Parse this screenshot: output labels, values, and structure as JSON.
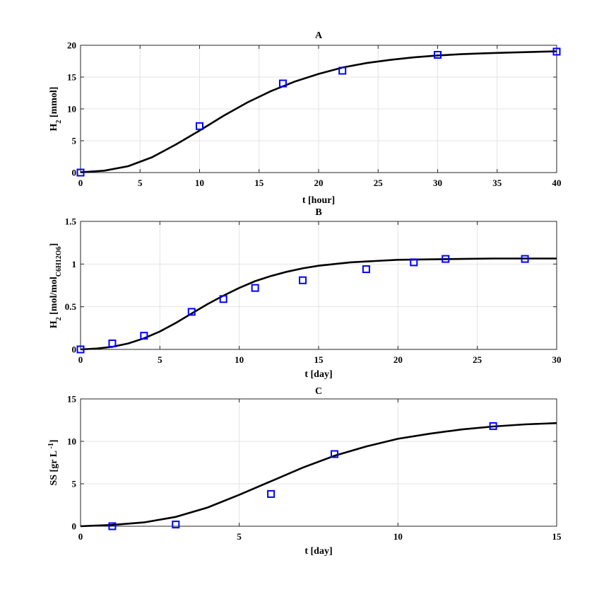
{
  "chart_data": [
    {
      "type": "scatter",
      "title": "A",
      "xlabel": "t [hour]",
      "ylabel": "H",
      "ylabel_sub": "2",
      "ylabel_rest": " [mmol]",
      "xlim": [
        0,
        40
      ],
      "ylim": [
        0,
        20
      ],
      "xticks": [
        0,
        5,
        10,
        15,
        20,
        25,
        30,
        35,
        40
      ],
      "yticks": [
        0,
        5,
        10,
        15,
        20
      ],
      "ytick_labels": [
        "0",
        "5",
        "10",
        "15",
        "20"
      ],
      "grid": true,
      "marker_color": "#0000ff",
      "line_color": "#000000",
      "series": [
        {
          "kind": "markers",
          "x": [
            0,
            10,
            17,
            22,
            30,
            40
          ],
          "y": [
            0,
            7.3,
            14,
            16,
            18.5,
            19
          ]
        },
        {
          "kind": "line",
          "x": [
            0,
            2,
            4,
            6,
            8,
            10,
            12,
            14,
            16,
            18,
            20,
            22,
            24,
            26,
            28,
            30,
            32,
            34,
            36,
            38,
            40
          ],
          "y": [
            0.05,
            0.3,
            1.0,
            2.4,
            4.4,
            6.6,
            8.9,
            11.0,
            12.8,
            14.3,
            15.5,
            16.5,
            17.2,
            17.7,
            18.1,
            18.4,
            18.6,
            18.75,
            18.85,
            18.95,
            19.05
          ]
        }
      ]
    },
    {
      "type": "scatter",
      "title": "B",
      "xlabel": "t [day]",
      "ylabel": "H",
      "ylabel_sub": "2",
      "ylabel_rest": " [mol/mol",
      "ylabel_sub2": "C6H12O6",
      "ylabel_end": "]",
      "xlim": [
        0,
        30
      ],
      "ylim": [
        0,
        1.5
      ],
      "xticks": [
        0,
        5,
        10,
        15,
        20,
        25,
        30
      ],
      "yticks": [
        0,
        0.5,
        1,
        1.5
      ],
      "ytick_labels": [
        "0",
        "0.5",
        "1",
        "1.5"
      ],
      "grid": true,
      "marker_color": "#0000ff",
      "line_color": "#000000",
      "series": [
        {
          "kind": "markers",
          "x": [
            0,
            2,
            4,
            7,
            9,
            11,
            14,
            18,
            21,
            23,
            28
          ],
          "y": [
            0,
            0.07,
            0.16,
            0.44,
            0.59,
            0.72,
            0.81,
            0.94,
            1.02,
            1.06,
            1.06
          ]
        },
        {
          "kind": "line",
          "x": [
            0,
            1,
            2,
            3,
            4,
            5,
            6,
            7,
            8,
            9,
            10,
            11,
            12,
            13,
            14,
            15,
            16,
            17,
            18,
            19,
            20,
            22,
            24,
            26,
            28,
            30
          ],
          "y": [
            0.0,
            0.01,
            0.03,
            0.07,
            0.13,
            0.21,
            0.31,
            0.42,
            0.53,
            0.63,
            0.72,
            0.8,
            0.86,
            0.91,
            0.95,
            0.98,
            1.0,
            1.02,
            1.03,
            1.04,
            1.05,
            1.055,
            1.06,
            1.065,
            1.065,
            1.065
          ]
        }
      ]
    },
    {
      "type": "scatter",
      "title": "C",
      "xlabel": "t [day]",
      "ylabel": "SS [gr L",
      "ylabel_sup": " -1",
      "ylabel_end": "]",
      "xlim": [
        0,
        15
      ],
      "ylim": [
        0,
        15
      ],
      "xticks": [
        0,
        5,
        10,
        15
      ],
      "yticks": [
        0,
        5,
        10,
        15
      ],
      "ytick_labels": [
        "0",
        "5",
        "10",
        "15"
      ],
      "grid": true,
      "marker_color": "#0000ff",
      "line_color": "#000000",
      "series": [
        {
          "kind": "markers",
          "x": [
            1,
            3,
            6,
            8,
            13
          ],
          "y": [
            0,
            0.2,
            3.8,
            8.5,
            11.8
          ]
        },
        {
          "kind": "line",
          "x": [
            0,
            1,
            2,
            3,
            4,
            5,
            6,
            7,
            8,
            9,
            10,
            11,
            12,
            13,
            14,
            15
          ],
          "y": [
            0.0,
            0.15,
            0.45,
            1.1,
            2.2,
            3.7,
            5.3,
            6.9,
            8.3,
            9.4,
            10.3,
            10.9,
            11.4,
            11.75,
            12.0,
            12.15
          ]
        }
      ]
    }
  ]
}
